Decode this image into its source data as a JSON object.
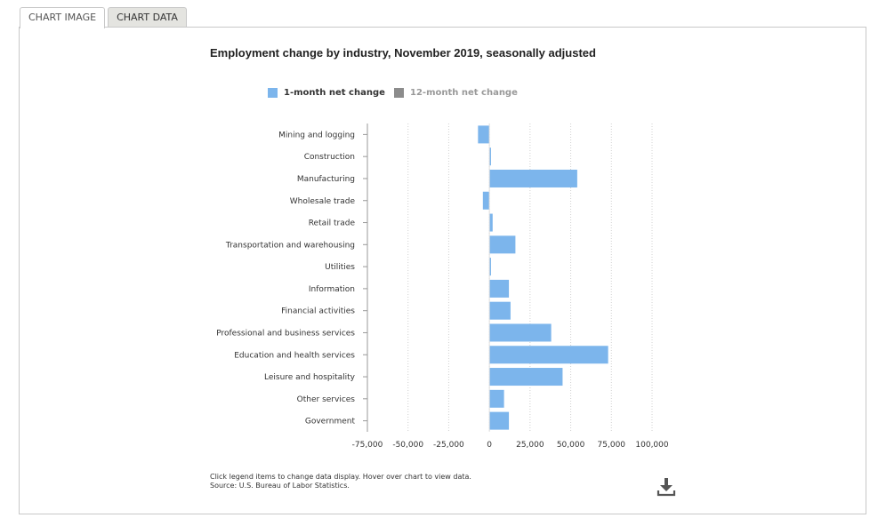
{
  "tabs": [
    {
      "label": "CHART IMAGE",
      "active": true
    },
    {
      "label": "CHART DATA",
      "active": false
    }
  ],
  "legend": [
    {
      "label": "1-month net change",
      "color": "#7cb5ec",
      "text_color": "#333333"
    },
    {
      "label": "12-month net change",
      "color": "#8c8c8c",
      "text_color": "#999999"
    }
  ],
  "footnote": {
    "line1": "Click legend items to change data display. Hover over chart to view data.",
    "line2": "Source: U.S. Bureau of Labor Statistics."
  },
  "download_icon": "download-icon",
  "chart_data": {
    "type": "bar",
    "orientation": "horizontal",
    "title": "Employment change by industry, November 2019, seasonally adjusted",
    "categories": [
      "Mining and logging",
      "Construction",
      "Manufacturing",
      "Wholesale trade",
      "Retail trade",
      "Transportation and warehousing",
      "Utilities",
      "Information",
      "Financial activities",
      "Professional and business services",
      "Education and health services",
      "Leisure and hospitality",
      "Other services",
      "Government"
    ],
    "series": [
      {
        "name": "1-month net change",
        "color": "#7cb5ec",
        "visible": true,
        "values": [
          -7000,
          1000,
          54000,
          -4000,
          2000,
          16000,
          1000,
          12000,
          13000,
          38000,
          73000,
          45000,
          9000,
          12000
        ]
      },
      {
        "name": "12-month net change",
        "color": "#8c8c8c",
        "visible": false
      }
    ],
    "xlim": [
      -75000,
      100000
    ],
    "xticks": [
      -75000,
      -50000,
      -25000,
      0,
      25000,
      50000,
      75000,
      100000
    ],
    "xtick_labels": [
      "-75,000",
      "-50,000",
      "-25,000",
      "0",
      "25,000",
      "50,000",
      "75,000",
      "100,000"
    ],
    "grid": true,
    "legend_position": "top"
  }
}
